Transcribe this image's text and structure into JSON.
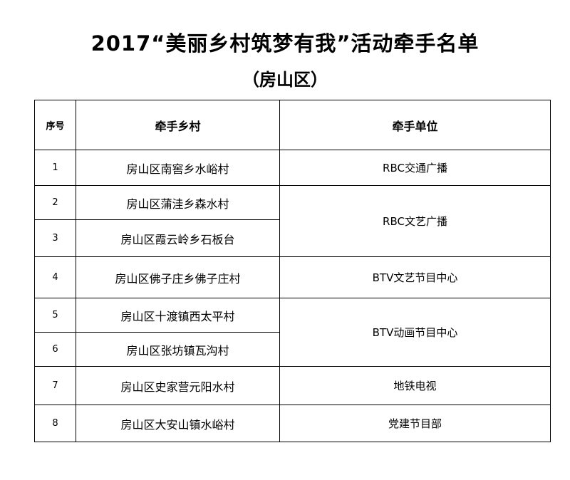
{
  "title": "2017“美丽乡村筑梦有我”活动牵手名单",
  "subtitle": "（房山区）",
  "table": {
    "headers": [
      "序号",
      "牵手乡村",
      "牵手单位"
    ],
    "rows": [
      {
        "no": "1",
        "village": "房山区南窖乡水峪村",
        "unit": "RBC交通广播"
      },
      {
        "no": "2",
        "village": "房山区蒲洼乡森水村",
        "unit": "RBC文艺广播"
      },
      {
        "no": "3",
        "village": "房山区霞云岭乡石板台",
        "unit": "RBC文艺广播"
      },
      {
        "no": "4",
        "village": "房山区佛子庄乡佛子庄村",
        "unit": "BTV文艺节目中心"
      },
      {
        "no": "5",
        "village": "房山区十渡镇西太平村",
        "unit": "BTV动画节目中心"
      },
      {
        "no": "6",
        "village": "房山区张坊镇瓦沟村",
        "unit": "BTV动画节目中心"
      },
      {
        "no": "7",
        "village": "房山区史家营元阳水村",
        "unit": "地铁电视"
      },
      {
        "no": "8",
        "village": "房山区大安山镇水峪村",
        "unit": "党建节目部"
      }
    ]
  }
}
